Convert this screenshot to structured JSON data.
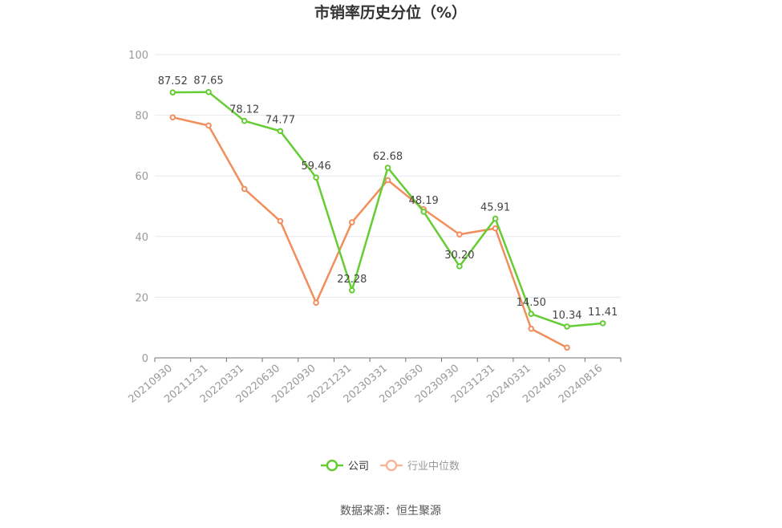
{
  "chart_data": {
    "type": "line",
    "title": "市销率历史分位（%）",
    "categories": [
      "20210930",
      "20211231",
      "20220331",
      "20220630",
      "20220930",
      "20221231",
      "20230331",
      "20230630",
      "20230930",
      "20231231",
      "20240331",
      "20240630",
      "20240816"
    ],
    "ylim": [
      0,
      100
    ],
    "yticks": [
      0,
      20,
      40,
      60,
      80,
      100
    ],
    "grid": true,
    "legend_position": "bottom",
    "series": [
      {
        "name": "公司",
        "color": "#66cc33",
        "values": [
          87.52,
          87.65,
          78.12,
          74.77,
          59.46,
          22.28,
          62.68,
          48.19,
          30.2,
          45.91,
          14.5,
          10.34,
          11.41
        ],
        "labels": [
          "87.52",
          "87.65",
          "78.12",
          "74.77",
          "59.46",
          "22.28",
          "62.68",
          "48.19",
          "30.20",
          "45.91",
          "14.50",
          "10.34",
          "11.41"
        ]
      },
      {
        "name": "行业中位数",
        "color": "#f28e5c",
        "values": [
          79.3,
          76.6,
          55.7,
          45.1,
          18.2,
          44.7,
          58.6,
          49.0,
          40.7,
          42.7,
          9.6,
          3.4,
          null
        ]
      }
    ]
  },
  "legend": {
    "company": "公司",
    "industry": "行业中位数",
    "industry_label_color": "#999999",
    "company_label_color": "#333333"
  },
  "source": "数据来源：恒生聚源"
}
